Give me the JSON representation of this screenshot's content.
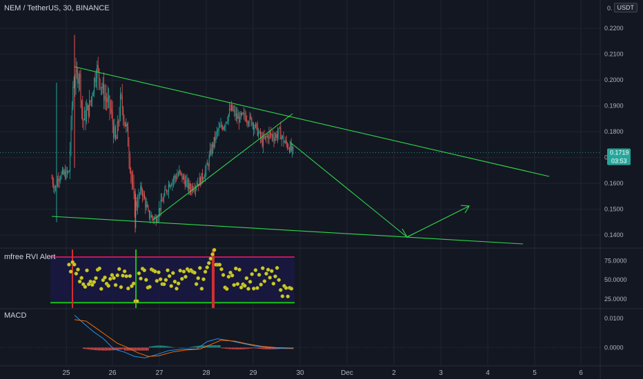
{
  "header": {
    "title": "NEM / TetherUS, 30, BINANCE",
    "currency_button": "USDT",
    "top_axis_label": "0."
  },
  "price_axis": {
    "ticks": [
      "0.2200",
      "0.2100",
      "0.2000",
      "0.1900",
      "0.1800",
      "0.1700",
      "0.1600",
      "0.1500",
      "0.1400"
    ],
    "ylim": [
      0.1355,
      0.231
    ],
    "last_price": "0.1719",
    "countdown": "03:53",
    "colors": {
      "badge": "#26a69a"
    }
  },
  "rvi_pane": {
    "label": "mfree RVI Alert",
    "ticks": [
      "75.0000",
      "50.0000",
      "25.0000"
    ],
    "ylim": [
      13,
      90
    ]
  },
  "macd_pane": {
    "label": "MACD",
    "ticks": [
      "0.0100",
      "0.0000"
    ],
    "ylim": [
      -0.006,
      0.013
    ]
  },
  "time_axis": {
    "labels": [
      "25",
      "26",
      "27",
      "28",
      "29",
      "30",
      "Dec",
      "2",
      "3",
      "4",
      "5",
      "6"
    ]
  },
  "colors": {
    "background": "#131722",
    "grid": "#1f2431",
    "up": "#26a69a",
    "down": "#ef5350",
    "trendline": "#30d94c",
    "rvi_dots": "#c9c92e",
    "rvi_upper": "#c2185b",
    "rvi_lower": "#17c317",
    "rvi_bg": "#1a1740",
    "macd_line": "#2196f3",
    "signal_line": "#ff6d00"
  }
}
